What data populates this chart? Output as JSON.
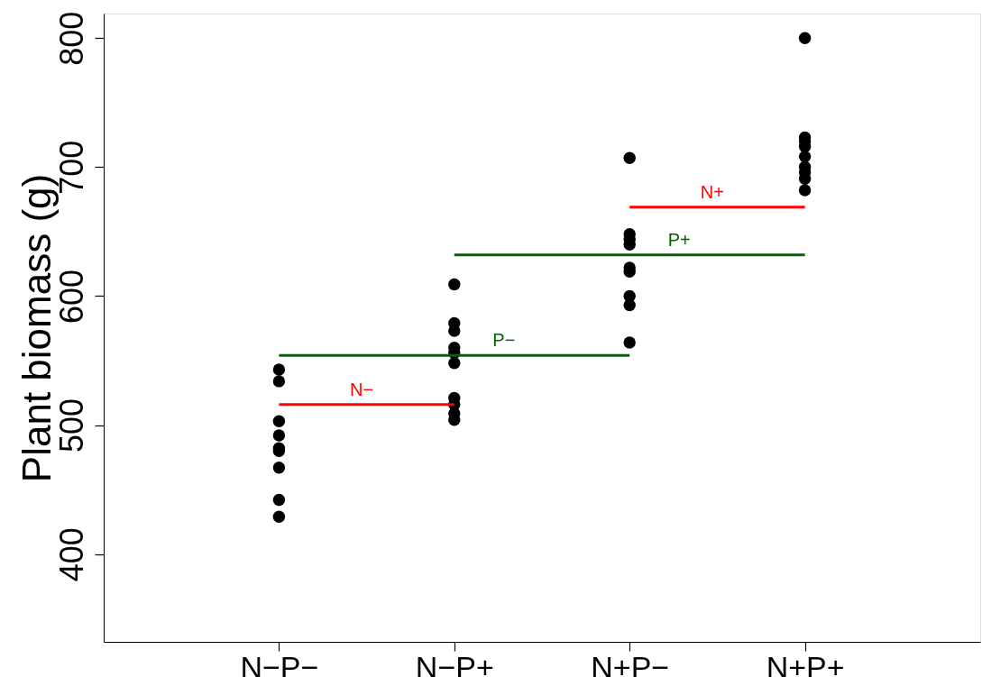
{
  "chart_data": {
    "type": "scatter",
    "ylabel": "Plant biomass (g)",
    "categories": [
      "N−P−",
      "N−P+",
      "N+P−",
      "N+P+"
    ],
    "ylim": [
      332,
      819
    ],
    "yticks": [
      400,
      500,
      600,
      700,
      800
    ],
    "grid": false,
    "series": [
      {
        "marker": "circle",
        "color": "#000000",
        "x": [
          "N−P−",
          "N−P−",
          "N−P−",
          "N−P−",
          "N−P−",
          "N−P−",
          "N−P−",
          "N−P−",
          "N−P−"
        ],
        "values": [
          543,
          534,
          503,
          492,
          482,
          480,
          467,
          442,
          429
        ]
      },
      {
        "marker": "circle",
        "color": "#000000",
        "x": [
          "N−P+",
          "N−P+",
          "N−P+",
          "N−P+",
          "N−P+",
          "N−P+",
          "N−P+",
          "N−P+",
          "N−P+",
          "N−P+"
        ],
        "values": [
          609,
          579,
          573,
          560,
          556,
          548,
          521,
          516,
          509,
          504
        ]
      },
      {
        "marker": "circle",
        "color": "#000000",
        "x": [
          "N+P−",
          "N+P−",
          "N+P−",
          "N+P−",
          "N+P−",
          "N+P−",
          "N+P−",
          "N+P−",
          "N+P−"
        ],
        "values": [
          707,
          648,
          644,
          640,
          622,
          619,
          600,
          593,
          564
        ]
      },
      {
        "marker": "circle",
        "color": "#000000",
        "x": [
          "N+P+",
          "N+P+",
          "N+P+",
          "N+P+",
          "N+P+",
          "N+P+",
          "N+P+",
          "N+P+",
          "N+P+"
        ],
        "values": [
          800,
          723,
          720,
          716,
          708,
          700,
          696,
          691,
          682
        ]
      },
      {
        "type": "line",
        "marker": "none",
        "line_style": "solid",
        "name": "N−",
        "color": "#ff0000",
        "values": [
          516,
          516,
          null,
          null
        ]
      },
      {
        "type": "line",
        "marker": "none",
        "line_style": "solid",
        "name": "P−",
        "color": "#006400",
        "values": [
          554,
          554,
          554,
          null
        ]
      },
      {
        "type": "line",
        "marker": "none",
        "line_style": "solid",
        "name": "P+",
        "color": "#006400",
        "values": [
          null,
          632,
          632,
          632
        ]
      },
      {
        "type": "line",
        "marker": "none",
        "line_style": "solid",
        "name": "N+",
        "color": "#ff0000",
        "values": [
          null,
          null,
          669,
          669
        ]
      }
    ]
  }
}
